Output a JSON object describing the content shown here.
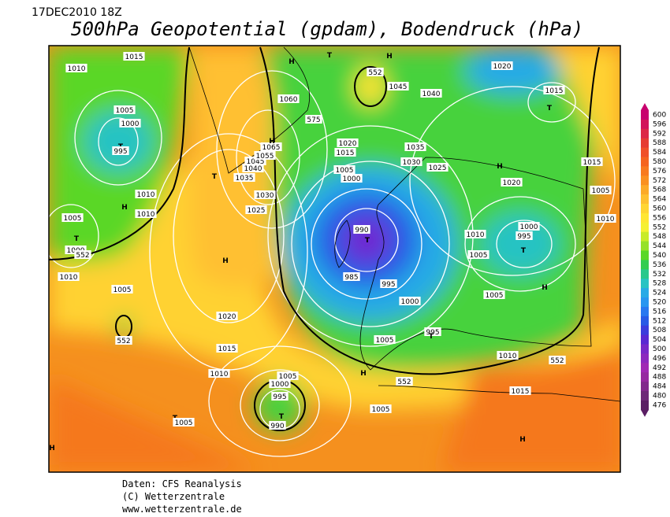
{
  "header": {
    "date": "17DEC2010 18Z",
    "title": "500hPa Geopotential (gpdam), Bodendruck (hPa)"
  },
  "colorbar": {
    "labels": [
      "600",
      "596",
      "592",
      "588",
      "584",
      "580",
      "576",
      "572",
      "568",
      "564",
      "560",
      "556",
      "552",
      "548",
      "544",
      "540",
      "536",
      "532",
      "528",
      "524",
      "520",
      "516",
      "512",
      "508",
      "504",
      "500",
      "496",
      "492",
      "488",
      "484",
      "480",
      "476"
    ],
    "colors": [
      "#c8006e",
      "#d2145a",
      "#dc2846",
      "#e63c32",
      "#f05028",
      "#f5641e",
      "#f87a1e",
      "#fa9020",
      "#fcaa28",
      "#fec030",
      "#ffd532",
      "#ffe632",
      "#f5f032",
      "#c8eb28",
      "#96e128",
      "#5ad728",
      "#32cd50",
      "#28c88c",
      "#28c3c3",
      "#28aae6",
      "#2896f0",
      "#2878f0",
      "#285ae6",
      "#3c3cdc",
      "#5a28d2",
      "#7828c8",
      "#8c28be",
      "#a028b4",
      "#9628a0",
      "#82288c",
      "#6e2878",
      "#5a1e64"
    ]
  },
  "map": {
    "labels": [
      "1015",
      "1010",
      "1005",
      "1000",
      "T",
      "995",
      "1010",
      "H",
      "1010",
      "1005",
      "T",
      "1000",
      "552",
      "1010",
      "1005",
      "552",
      "H",
      "1020",
      "1015",
      "1010",
      "T",
      "1005",
      "H",
      "1005",
      "1000",
      "995",
      "T",
      "990",
      "H",
      "552",
      "1005",
      "1005",
      "1000",
      "995",
      "985",
      "990",
      "T",
      "1000",
      "1005",
      "1015",
      "1020",
      "1025",
      "1030",
      "1035",
      "T",
      "1040",
      "1045",
      "1055",
      "1065",
      "H",
      "1060",
      "575",
      "H",
      "T",
      "552",
      "H",
      "1045",
      "1040",
      "1035",
      "1030",
      "1025",
      "H",
      "1020",
      "1020",
      "1015",
      "T",
      "1015",
      "1005",
      "1010",
      "1010",
      "1000",
      "995",
      "T",
      "1005",
      "H",
      "1005",
      "995",
      "T",
      "1010",
      "552",
      "1015",
      "H"
    ]
  },
  "footer": {
    "source": "Daten: CFS Reanalysis",
    "copyright": "(C) Wetterzentrale",
    "url": "www.wetterzentrale.de"
  }
}
